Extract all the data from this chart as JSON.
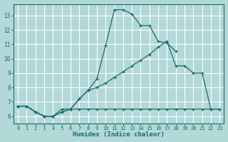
{
  "xlabel": "Humidex (Indice chaleur)",
  "background_color": "#b2d8d8",
  "grid_color": "#ffffff",
  "line_color": "#1a6b6b",
  "xlim": [
    -0.5,
    23.5
  ],
  "ylim": [
    5.5,
    13.8
  ],
  "xticks": [
    0,
    1,
    2,
    3,
    4,
    5,
    6,
    7,
    8,
    9,
    10,
    11,
    12,
    13,
    14,
    15,
    16,
    17,
    18,
    19,
    20,
    21,
    22,
    23
  ],
  "yticks": [
    6,
    7,
    8,
    9,
    10,
    11,
    12,
    13
  ],
  "line1_x": [
    0,
    1,
    2,
    3,
    4,
    5,
    6,
    7,
    8,
    9,
    10,
    11,
    12,
    13,
    14,
    15,
    16,
    17,
    18
  ],
  "line1_y": [
    6.7,
    6.7,
    6.3,
    6.0,
    6.0,
    6.3,
    6.5,
    7.2,
    7.8,
    8.6,
    10.9,
    13.4,
    13.4,
    13.1,
    12.3,
    12.3,
    11.2,
    11.1,
    10.5
  ],
  "line2_x": [
    0,
    1,
    2,
    3,
    4,
    5,
    6,
    7,
    8,
    9,
    10,
    11,
    12,
    13,
    14,
    15,
    16,
    17,
    18,
    19,
    20,
    21,
    22,
    23
  ],
  "line2_y": [
    6.7,
    6.7,
    6.3,
    6.0,
    6.0,
    6.5,
    6.5,
    7.2,
    7.8,
    8.0,
    8.3,
    8.7,
    9.1,
    9.5,
    9.9,
    10.3,
    10.8,
    11.2,
    9.5,
    9.5,
    9.0,
    9.0,
    6.5,
    6.5
  ],
  "line3_x": [
    0,
    1,
    2,
    3,
    4,
    5,
    6,
    7,
    8,
    9,
    10,
    11,
    12,
    13,
    14,
    15,
    16,
    17,
    18,
    19,
    20,
    21,
    22,
    23
  ],
  "line3_y": [
    6.7,
    6.7,
    6.3,
    6.0,
    6.0,
    6.3,
    6.5,
    6.5,
    6.5,
    6.5,
    6.5,
    6.5,
    6.5,
    6.5,
    6.5,
    6.5,
    6.5,
    6.5,
    6.5,
    6.5,
    6.5,
    6.5,
    6.5,
    6.5
  ]
}
